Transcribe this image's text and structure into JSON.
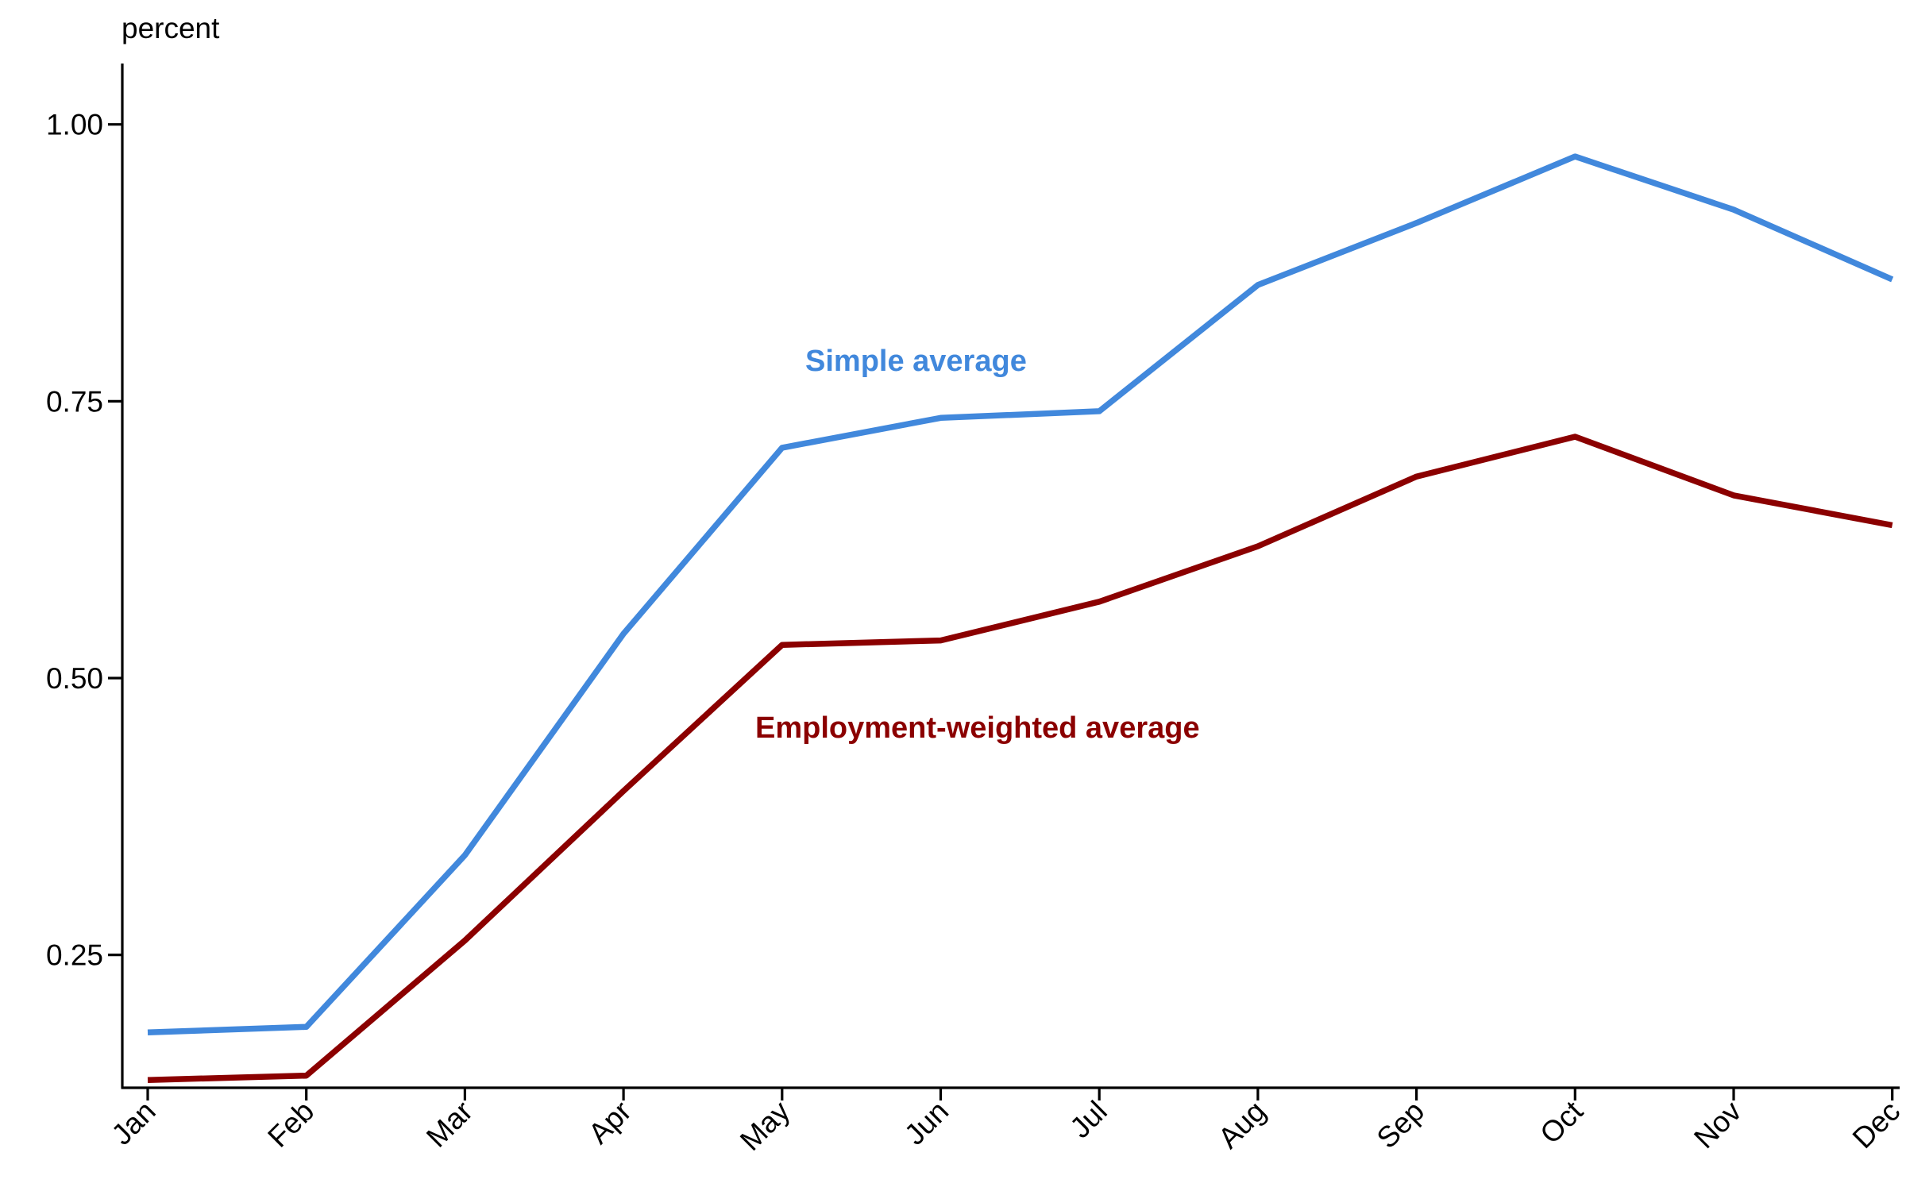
{
  "chart_data": {
    "type": "line",
    "ylabel": "percent",
    "categories": [
      "Jan",
      "Feb",
      "Mar",
      "Apr",
      "May",
      "Jun",
      "Jul",
      "Aug",
      "Sep",
      "Oct",
      "Nov",
      "Dec"
    ],
    "ylim": [
      0.13,
      1.055
    ],
    "yticks": [
      0.25,
      0.5,
      0.75,
      1.0
    ],
    "ytick_labels": [
      "0.25",
      "0.50",
      "0.75",
      "1.00"
    ],
    "grid": false,
    "legend": "inline labels",
    "series": [
      {
        "name": "Simple average",
        "color": "#4188dc",
        "values": [
          0.18,
          0.185,
          0.34,
          0.54,
          0.708,
          0.735,
          0.741,
          0.855,
          0.911,
          0.971,
          0.923,
          0.86
        ]
      },
      {
        "name": "Employment-weighted average",
        "color": "#8b0000",
        "values": [
          0.137,
          0.141,
          0.263,
          0.398,
          0.53,
          0.534,
          0.569,
          0.619,
          0.682,
          0.718,
          0.665,
          0.638
        ]
      }
    ]
  }
}
